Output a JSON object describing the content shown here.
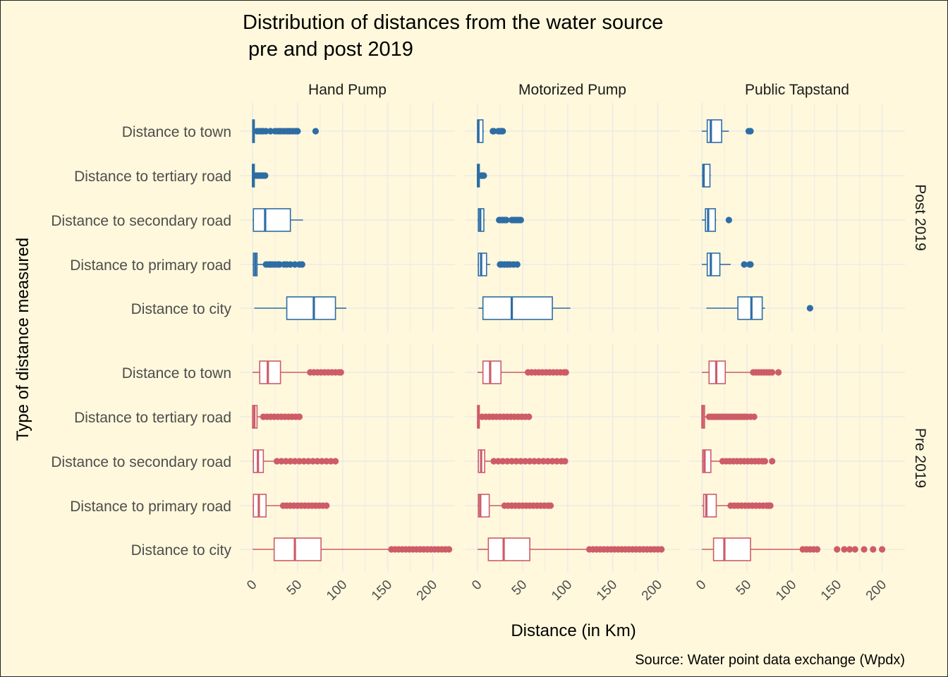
{
  "title_line1": "Distribution of distances from the water source",
  "title_line2": " pre and post 2019",
  "xlabel": "Distance (in Km)",
  "ylabel": "Type of distance measured",
  "caption": "Source: Water point data exchange (Wpdx)",
  "colors": {
    "post": "#2e6da4",
    "pre": "#cd5c68",
    "grid": "#ecebe6",
    "text": "#4d4d4d",
    "background": "#fff8dc"
  },
  "chart_data": {
    "type": "boxplot",
    "orientation": "horizontal",
    "facet_columns": [
      "Hand Pump",
      "Motorized Pump",
      "Public Tapstand"
    ],
    "facet_rows": [
      "Post 2019",
      "Pre 2019"
    ],
    "categories": [
      "Distance to town",
      "Distance to tertiary road",
      "Distance to secondary road",
      "Distance to primary road",
      "Distance to city"
    ],
    "x_ticks": [
      0,
      50,
      100,
      150,
      200
    ],
    "xlim": [
      0,
      200
    ],
    "grid": true,
    "series": [
      {
        "name": "Post 2019",
        "facet": "Hand Pump",
        "boxes": [
          {
            "category": "Distance to town",
            "min": 0,
            "q1": 0.2,
            "median": 1,
            "q3": 2,
            "max": 3,
            "outliers": [
              5,
              8,
              10,
              12,
              15,
              20,
              25,
              28,
              30,
              32,
              35,
              38,
              40,
              42,
              45,
              48,
              50,
              70
            ]
          },
          {
            "category": "Distance to tertiary road",
            "min": 0,
            "q1": 0,
            "median": 0.5,
            "q3": 2,
            "max": 3,
            "outliers": [
              4,
              6,
              8,
              10,
              12,
              14
            ]
          },
          {
            "category": "Distance to secondary road",
            "min": 0,
            "q1": 1,
            "median": 14,
            "q3": 42,
            "max": 56,
            "outliers": []
          },
          {
            "category": "Distance to primary road",
            "min": 0,
            "q1": 1,
            "median": 3,
            "q3": 5,
            "max": 14,
            "outliers": [
              15,
              18,
              20,
              22,
              25,
              28,
              30,
              35,
              38,
              42,
              47,
              52,
              55
            ]
          },
          {
            "category": "Distance to city",
            "min": 2,
            "q1": 38,
            "median": 68,
            "q3": 92,
            "max": 104,
            "outliers": []
          }
        ]
      },
      {
        "name": "Post 2019",
        "facet": "Motorized Pump",
        "boxes": [
          {
            "category": "Distance to town",
            "min": 0,
            "q1": 0,
            "median": 1,
            "q3": 6,
            "max": 7,
            "outliers": [
              17,
              18,
              23,
              25,
              27,
              28
            ]
          },
          {
            "category": "Distance to tertiary road",
            "min": 0,
            "q1": 0,
            "median": 0.5,
            "q3": 2,
            "max": 3,
            "outliers": [
              4,
              5,
              6,
              7
            ]
          },
          {
            "category": "Distance to secondary road",
            "min": 0,
            "q1": 1,
            "median": 3,
            "q3": 7,
            "max": 8,
            "outliers": [
              24,
              26,
              28,
              30,
              32,
              38,
              40,
              42,
              44,
              46,
              48
            ]
          },
          {
            "category": "Distance to primary road",
            "min": 0,
            "q1": 1,
            "median": 4,
            "q3": 10,
            "max": 14,
            "outliers": [
              25,
              27,
              30,
              33,
              36,
              40,
              44
            ]
          },
          {
            "category": "Distance to city",
            "min": 1,
            "q1": 6,
            "median": 38,
            "q3": 83,
            "max": 103,
            "outliers": []
          }
        ]
      },
      {
        "name": "Post 2019",
        "facet": "Public Tapstand",
        "boxes": [
          {
            "category": "Distance to town",
            "min": 0,
            "q1": 6,
            "median": 10,
            "q3": 22,
            "max": 30,
            "outliers": [
              52,
              54
            ]
          },
          {
            "category": "Distance to tertiary road",
            "min": 0,
            "q1": 1,
            "median": 2,
            "q3": 9,
            "max": 10,
            "outliers": []
          },
          {
            "category": "Distance to secondary road",
            "min": 0,
            "q1": 4,
            "median": 7,
            "q3": 15,
            "max": 16,
            "outliers": [
              30
            ]
          },
          {
            "category": "Distance to primary road",
            "min": 0,
            "q1": 6,
            "median": 10,
            "q3": 20,
            "max": 32,
            "outliers": [
              47,
              53,
              54
            ]
          },
          {
            "category": "Distance to city",
            "min": 5,
            "q1": 40,
            "median": 55,
            "q3": 67,
            "max": 70,
            "outliers": [
              120
            ]
          }
        ]
      },
      {
        "name": "Pre 2019",
        "facet": "Hand Pump",
        "boxes": [
          {
            "category": "Distance to town",
            "min": 0,
            "q1": 8,
            "median": 17,
            "q3": 31,
            "max": 62,
            "outliers": [
              64,
              68,
              72,
              76,
              80,
              84,
              88,
              92,
              96,
              98
            ]
          },
          {
            "category": "Distance to tertiary road",
            "min": 0,
            "q1": 0,
            "median": 2,
            "q3": 5,
            "max": 11,
            "outliers": [
              12,
              16,
              20,
              24,
              28,
              32,
              36,
              40,
              44,
              48,
              52
            ]
          },
          {
            "category": "Distance to secondary road",
            "min": 0,
            "q1": 1,
            "median": 6,
            "q3": 12,
            "max": 25,
            "outliers": [
              27,
              32,
              37,
              42,
              47,
              52,
              57,
              62,
              67,
              72,
              77,
              82,
              87,
              92
            ]
          },
          {
            "category": "Distance to primary road",
            "min": 0,
            "q1": 1,
            "median": 7,
            "q3": 15,
            "max": 32,
            "outliers": [
              34,
              38,
              42,
              46,
              50,
              54,
              58,
              62,
              66,
              70,
              74,
              78,
              82
            ]
          },
          {
            "category": "Distance to city",
            "min": 0,
            "q1": 24,
            "median": 47,
            "q3": 76,
            "max": 152,
            "outliers": [
              154,
              158,
              162,
              166,
              170,
              174,
              178,
              182,
              186,
              190,
              194,
              198,
              202,
              206,
              210,
              214,
              218
            ]
          }
        ]
      },
      {
        "name": "Pre 2019",
        "facet": "Motorized Pump",
        "boxes": [
          {
            "category": "Distance to town",
            "min": 0,
            "q1": 6,
            "median": 14,
            "q3": 26,
            "max": 54,
            "outliers": [
              56,
              60,
              64,
              68,
              72,
              76,
              80,
              84,
              88,
              92,
              96,
              98
            ]
          },
          {
            "category": "Distance to tertiary road",
            "min": 0,
            "q1": 0,
            "median": 1,
            "q3": 2,
            "max": 3,
            "outliers": [
              5,
              9,
              13,
              17,
              21,
              25,
              29,
              33,
              37,
              41,
              45,
              49,
              53,
              57
            ]
          },
          {
            "category": "Distance to secondary road",
            "min": 0,
            "q1": 1,
            "median": 4,
            "q3": 8,
            "max": 16,
            "outliers": [
              18,
              23,
              28,
              33,
              38,
              43,
              48,
              53,
              58,
              63,
              68,
              73,
              78,
              83,
              88,
              93,
              97
            ]
          },
          {
            "category": "Distance to primary road",
            "min": 0,
            "q1": 1,
            "median": 3,
            "q3": 13,
            "max": 27,
            "outliers": [
              30,
              34,
              38,
              42,
              46,
              50,
              54,
              58,
              62,
              66,
              70,
              74,
              78,
              81
            ]
          },
          {
            "category": "Distance to city",
            "min": 0,
            "q1": 12,
            "median": 29,
            "q3": 58,
            "max": 122,
            "outliers": [
              124,
              128,
              132,
              136,
              140,
              144,
              148,
              152,
              156,
              160,
              164,
              168,
              172,
              176,
              180,
              184,
              188,
              192,
              196,
              200,
              204
            ]
          }
        ]
      },
      {
        "name": "Pre 2019",
        "facet": "Public Tapstand",
        "boxes": [
          {
            "category": "Distance to town",
            "min": 0,
            "q1": 8,
            "median": 16,
            "q3": 26,
            "max": 55,
            "outliers": [
              57,
              60,
              63,
              66,
              69,
              72,
              75,
              78,
              85
            ]
          },
          {
            "category": "Distance to tertiary road",
            "min": 0,
            "q1": 0,
            "median": 1,
            "q3": 3,
            "max": 6,
            "outliers": [
              8,
              11,
              14,
              17,
              20,
              23,
              26,
              29,
              32,
              35,
              38,
              41,
              44,
              47,
              50,
              54,
              58
            ]
          },
          {
            "category": "Distance to secondary road",
            "min": 0,
            "q1": 1,
            "median": 3,
            "q3": 10,
            "max": 20,
            "outliers": [
              23,
              27,
              31,
              35,
              39,
              43,
              47,
              51,
              55,
              59,
              63,
              67,
              70,
              78
            ]
          },
          {
            "category": "Distance to primary road",
            "min": 0,
            "q1": 2,
            "median": 5,
            "q3": 16,
            "max": 30,
            "outliers": [
              32,
              36,
              40,
              44,
              48,
              52,
              56,
              60,
              64,
              68,
              72,
              74,
              76
            ]
          },
          {
            "category": "Distance to city",
            "min": 0,
            "q1": 13,
            "median": 25,
            "q3": 54,
            "max": 110,
            "outliers": [
              112,
              116,
              120,
              124,
              128,
              150,
              158,
              164,
              170,
              180,
              190,
              200
            ]
          }
        ]
      }
    ]
  }
}
